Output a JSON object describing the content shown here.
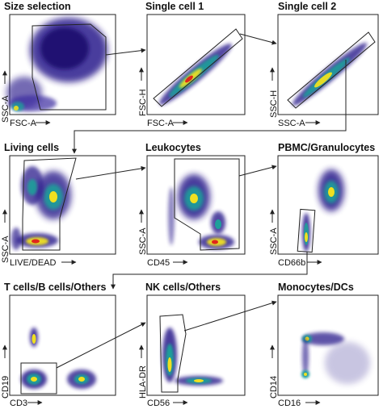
{
  "figure": {
    "panels": [
      {
        "id": "size-selection",
        "title": "Size selection",
        "xlabel": "FSC-A",
        "ylabel": "SSC-A"
      },
      {
        "id": "single-cell-1",
        "title": "Single cell 1",
        "xlabel": "FSC-A",
        "ylabel": "FSC-H"
      },
      {
        "id": "single-cell-2",
        "title": "Single cell 2",
        "xlabel": "SSC-A",
        "ylabel": "SSC-H"
      },
      {
        "id": "living-cells",
        "title": "Living cells",
        "xlabel": "LIVE/DEAD",
        "ylabel": "SSC-A"
      },
      {
        "id": "leukocytes",
        "title": "Leukocytes",
        "xlabel": "CD45",
        "ylabel": "SSC-A"
      },
      {
        "id": "pbmc-granulocytes",
        "title": "PBMC/Granulocytes",
        "xlabel": "CD66b",
        "ylabel": "SSC-A"
      },
      {
        "id": "t-b-others",
        "title": "T cells/B cells/Others",
        "xlabel": "CD3",
        "ylabel": "CD19"
      },
      {
        "id": "nk-others",
        "title": "NK cells/Others",
        "xlabel": "CD56",
        "ylabel": "HLA-DR"
      },
      {
        "id": "monocytes-dcs",
        "title": "Monocytes/DCs",
        "xlabel": "CD16",
        "ylabel": "CD14"
      }
    ],
    "colors": {
      "density_low": "#2b1a8c",
      "density_mid": "#1f9f9a",
      "density_high": "#f0e020",
      "density_peak": "#e0261b",
      "gate_line": "#222222"
    }
  }
}
